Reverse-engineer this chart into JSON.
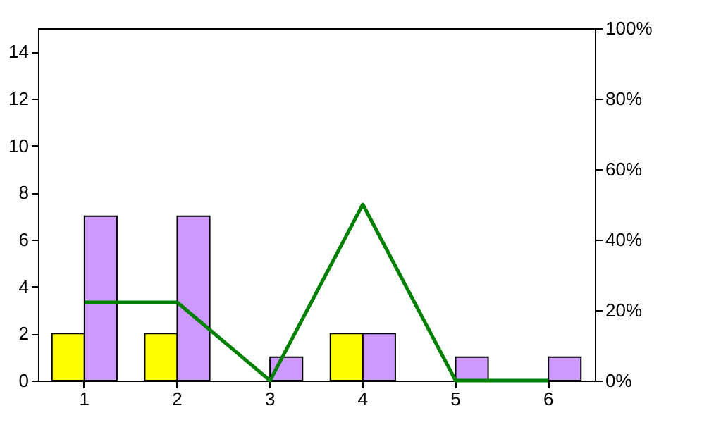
{
  "chart_data": {
    "type": "bar",
    "categories": [
      "1",
      "2",
      "3",
      "4",
      "5",
      "6"
    ],
    "series": [
      {
        "color": "#ffff00",
        "values": [
          2,
          2,
          0,
          2,
          0,
          0
        ]
      },
      {
        "color": "#cc99ff",
        "values": [
          7,
          7,
          1,
          2,
          1,
          1
        ]
      },
      {
        "type": "line",
        "color": "#008000",
        "axis": "y2",
        "values": [
          22.2,
          22.2,
          0,
          50,
          0,
          0
        ]
      }
    ],
    "ylim": [
      0,
      15
    ],
    "yticks": [
      0,
      2,
      4,
      6,
      8,
      10,
      12,
      14
    ],
    "y2lim": [
      0,
      100
    ],
    "y2ticks": [
      {
        "value": 0,
        "label": "0%"
      },
      {
        "value": 20,
        "label": "20%"
      },
      {
        "value": 40,
        "label": "40%"
      },
      {
        "value": 60,
        "label": "60%"
      },
      {
        "value": 80,
        "label": "80%"
      },
      {
        "value": 100,
        "label": "100%"
      }
    ],
    "grid": false
  }
}
